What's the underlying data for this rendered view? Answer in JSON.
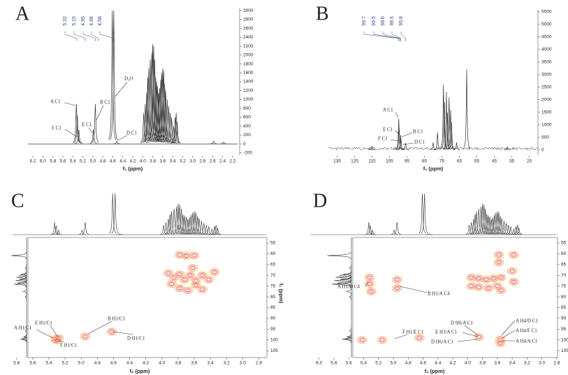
{
  "chart_data": [
    {
      "type": "spectrum",
      "label": "A",
      "x_label": "f₁ (ppm)",
      "color": "#333333",
      "xlim": [
        6.3,
        2.1
      ],
      "xticks": [
        6.2,
        {
          "value": 6,
          "label": "6.0"
        },
        5.8,
        5.6,
        5.4,
        5.2,
        {
          "value": 5,
          "label": "5.0"
        },
        4.8,
        4.6,
        4.4,
        4.2,
        {
          "value": 4,
          "label": "4.0"
        },
        3.8,
        3.6,
        3.4,
        3.2,
        {
          "value": 3,
          "label": "3.0"
        },
        2.8,
        2.6,
        2.4,
        2.2
      ],
      "ylim": [
        -250,
        3050
      ],
      "yticks": [
        -200,
        0,
        200,
        400,
        600,
        800,
        1000,
        1200,
        1400,
        1600,
        1800,
        2000,
        2200,
        2400,
        2600,
        2800,
        3000
      ],
      "peak_labels": [
        5.32,
        5.15,
        4.95,
        4.89,
        4.58
      ],
      "annotations": [
        "A C1",
        "F C1",
        "E C1",
        "B C1",
        "D₂O",
        "D C1"
      ],
      "x": [
        5.33,
        5.31,
        5.28,
        4.99,
        4.95,
        4.61,
        4.58,
        4.52,
        3.98,
        3.95,
        3.92,
        3.9,
        3.88,
        3.85,
        3.82,
        3.8,
        3.78,
        3.76,
        3.74,
        3.72,
        3.7,
        3.68,
        3.66,
        3.64,
        3.62,
        3.6,
        3.58,
        3.56,
        3.54,
        3.51,
        3.48,
        3.45,
        3.42,
        3.38,
        3.35,
        3.33,
        3.31,
        2.58,
        2.38
      ],
      "values": [
        900,
        650,
        320,
        330,
        900,
        3000,
        3000,
        60,
        700,
        900,
        1150,
        1500,
        1700,
        1900,
        2050,
        2250,
        2200,
        1900,
        1500,
        1400,
        1300,
        1150,
        1250,
        1450,
        1600,
        1700,
        1650,
        1350,
        1200,
        1000,
        850,
        700,
        600,
        400,
        600,
        700,
        500,
        60,
        40
      ]
    },
    {
      "type": "spectrum",
      "label": "B",
      "x_label": "f₁ (ppm)",
      "color": "#333333",
      "xlim": [
        140,
        20
      ],
      "xticks": [
        135,
        125,
        115,
        105,
        95,
        85,
        75,
        65,
        55,
        45,
        35,
        25
      ],
      "ylim": [
        -200,
        5580
      ],
      "yticks": [
        0,
        500,
        1000,
        1500,
        2000,
        2500,
        3000,
        3500,
        4000,
        4500,
        5000,
        5500
      ],
      "peak_labels": [
        99.7,
        99.5,
        98.6,
        98.5,
        95.8
      ],
      "annotations": [
        "A C1",
        "E C1",
        "B C1",
        "F C1",
        "D C1"
      ],
      "x": [
        115,
        99.7,
        99.5,
        98.6,
        98.5,
        95.8,
        80.0,
        77.5,
        74.1,
        73.6,
        72.4,
        71.8,
        70.9,
        70.0,
        69.5,
        66.6,
        60.8,
        37.5
      ],
      "values": [
        150,
        1250,
        900,
        600,
        450,
        280,
        300,
        700,
        2600,
        1900,
        2300,
        1500,
        2100,
        1600,
        1100,
        300,
        3200,
        120
      ]
    },
    {
      "type": "contour",
      "label": "C",
      "x_label": "f₂ (ppm)",
      "y_label": "f₁ (ppm)",
      "colors": [
        "#f5c16c",
        "#f4908a",
        "#e8506e"
      ],
      "xlim": [
        5.85,
        2.7
      ],
      "xticks": [
        5.8,
        5.6,
        5.4,
        5.2,
        {
          "value": 5,
          "label": "5.0"
        },
        4.8,
        4.6,
        4.4,
        4.2,
        {
          "value": 4,
          "label": "4.0"
        },
        3.8,
        3.6,
        3.4,
        3.2,
        {
          "value": 3,
          "label": "3.0"
        },
        2.8
      ],
      "ylim": [
        52.4,
        108.2
      ],
      "yticks": [
        55,
        60,
        65,
        70,
        75,
        80,
        85,
        90,
        95,
        100,
        105
      ],
      "annotations": [
        "A H1/C1",
        "E H1/C1",
        "B H1/C1",
        "D H1/C1",
        "F H1/C1"
      ],
      "x": [
        5.32,
        5.28,
        5.3,
        4.95,
        4.62,
        3.78,
        3.7,
        3.6,
        3.92,
        3.85,
        3.78,
        3.72,
        3.65,
        3.58,
        3.5,
        3.42,
        3.35,
        3.88,
        3.78,
        3.68,
        3.58,
        3.5,
        3.62
      ],
      "values": [
        99.6,
        99.2,
        100.3,
        98.4,
        96.2,
        60.5,
        61,
        60.8,
        69,
        71,
        69.5,
        72,
        70,
        72.5,
        70,
        72,
        68.5,
        74,
        76,
        77,
        74.5,
        76.5,
        66.5
      ]
    },
    {
      "type": "contour",
      "label": "D",
      "x_label": "f₂ (ppm)",
      "colors": [
        "#f5c16c",
        "#f4908a",
        "#e8506e"
      ],
      "xlim": [
        6.11,
        2.79
      ],
      "xticks": [
        {
          "value": 6,
          "label": "6.0"
        },
        5.8,
        5.6,
        5.4,
        5.2,
        {
          "value": 5,
          "label": "5.0"
        },
        4.8,
        4.6,
        4.4,
        4.2,
        {
          "value": 4,
          "label": "4.0"
        },
        3.8,
        3.6,
        3.4,
        3.2,
        {
          "value": 3,
          "label": "3.0"
        },
        2.8
      ],
      "ylim": [
        52.4,
        108.2
      ],
      "yticks": [
        55,
        60,
        65,
        70,
        75,
        80,
        85,
        90,
        95,
        100,
        105
      ],
      "annotations": [
        "A H1/D C4",
        "B H1/A C4",
        "F H1/E C1",
        "D H6/A C1",
        "E H3/A C1",
        "D H6/A C1",
        "A H4/D C1",
        "A H4/F C1",
        "A H4/A C1"
      ],
      "x": [
        5.32,
        5.32,
        5.3,
        4.95,
        4.95,
        3.95,
        3.95,
        3.85,
        3.85,
        3.75,
        3.72,
        3.65,
        3.6,
        3.58,
        3.58,
        3.55,
        3.55,
        3.38,
        3.38,
        3.4,
        5.42,
        5.15,
        4.65,
        3.85,
        3.56,
        3.56
      ],
      "values": [
        71,
        74,
        77.5,
        72,
        76,
        71,
        75,
        71.5,
        75.5,
        72,
        76,
        71.5,
        75,
        60.5,
        64,
        71,
        77,
        60.5,
        73,
        68,
        100,
        100,
        99,
        98.7,
        99.8,
        101.5
      ]
    }
  ]
}
